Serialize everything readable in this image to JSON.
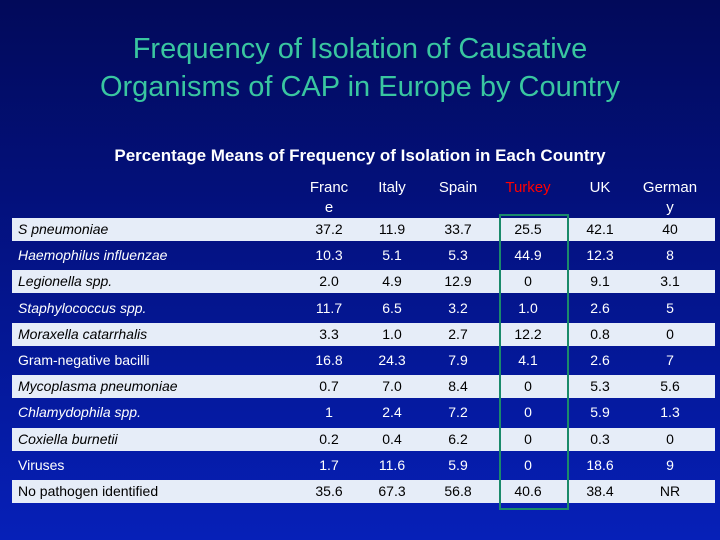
{
  "title_line1": "Frequency of Isolation of Causative",
  "title_line2": "Organisms of CAP in Europe by Country",
  "subtitle": "Percentage Means of Frequency of Isolation in Each Country",
  "columns": [
    {
      "l1": "Franc",
      "l2": "e"
    },
    {
      "l1": "Italy",
      "l2": ""
    },
    {
      "l1": "Spain",
      "l2": ""
    },
    {
      "l1": "Turkey",
      "l2": ""
    },
    {
      "l1": "UK",
      "l2": ""
    },
    {
      "l1": "German",
      "l2": "y"
    }
  ],
  "colors": {
    "title": "#39c6a0",
    "turkey_header": "#ff0000",
    "row_light": "#e6edf8",
    "highlight": "#1a8a6a"
  },
  "rows": [
    {
      "name": "S pneumoniae",
      "italic": true,
      "values": [
        "37.2",
        "11.9",
        "33.7",
        "25.5",
        "42.1",
        "40"
      ]
    },
    {
      "name": "Haemophilus influenzae",
      "italic": true,
      "values": [
        "10.3",
        "5.1",
        "5.3",
        "44.9",
        "12.3",
        "8"
      ]
    },
    {
      "name": "Legionella spp.",
      "italic": true,
      "values": [
        "2.0",
        "4.9",
        "12.9",
        "0",
        "9.1",
        "3.1"
      ]
    },
    {
      "name": "Staphylococcus spp.",
      "italic": true,
      "values": [
        "11.7",
        "6.5",
        "3.2",
        "1.0",
        "2.6",
        "5"
      ]
    },
    {
      "name": "Moraxella catarrhalis",
      "italic": true,
      "values": [
        "3.3",
        "1.0",
        "2.7",
        "12.2",
        "0.8",
        "0"
      ]
    },
    {
      "name": "Gram-negative bacilli",
      "italic": false,
      "values": [
        "16.8",
        "24.3",
        "7.9",
        "4.1",
        "2.6",
        "7"
      ]
    },
    {
      "name": "Mycoplasma pneumoniae",
      "italic": true,
      "values": [
        "0.7",
        "7.0",
        "8.4",
        "0",
        "5.3",
        "5.6"
      ]
    },
    {
      "name": "Chlamydophila spp.",
      "italic": true,
      "values": [
        "1",
        "2.4",
        "7.2",
        "0",
        "5.9",
        "1.3"
      ]
    },
    {
      "name": "Coxiella burnetii",
      "italic": true,
      "values": [
        "0.2",
        "0.4",
        "6.2",
        "0",
        "0.3",
        "0"
      ]
    },
    {
      "name": "Viruses",
      "italic": false,
      "values": [
        "1.7",
        "11.6",
        "5.9",
        "0",
        "18.6",
        "9"
      ]
    },
    {
      "name": "No pathogen identified",
      "italic": false,
      "values": [
        "35.6",
        "67.3",
        "56.8",
        "40.6",
        "38.4",
        "NR"
      ]
    }
  ]
}
